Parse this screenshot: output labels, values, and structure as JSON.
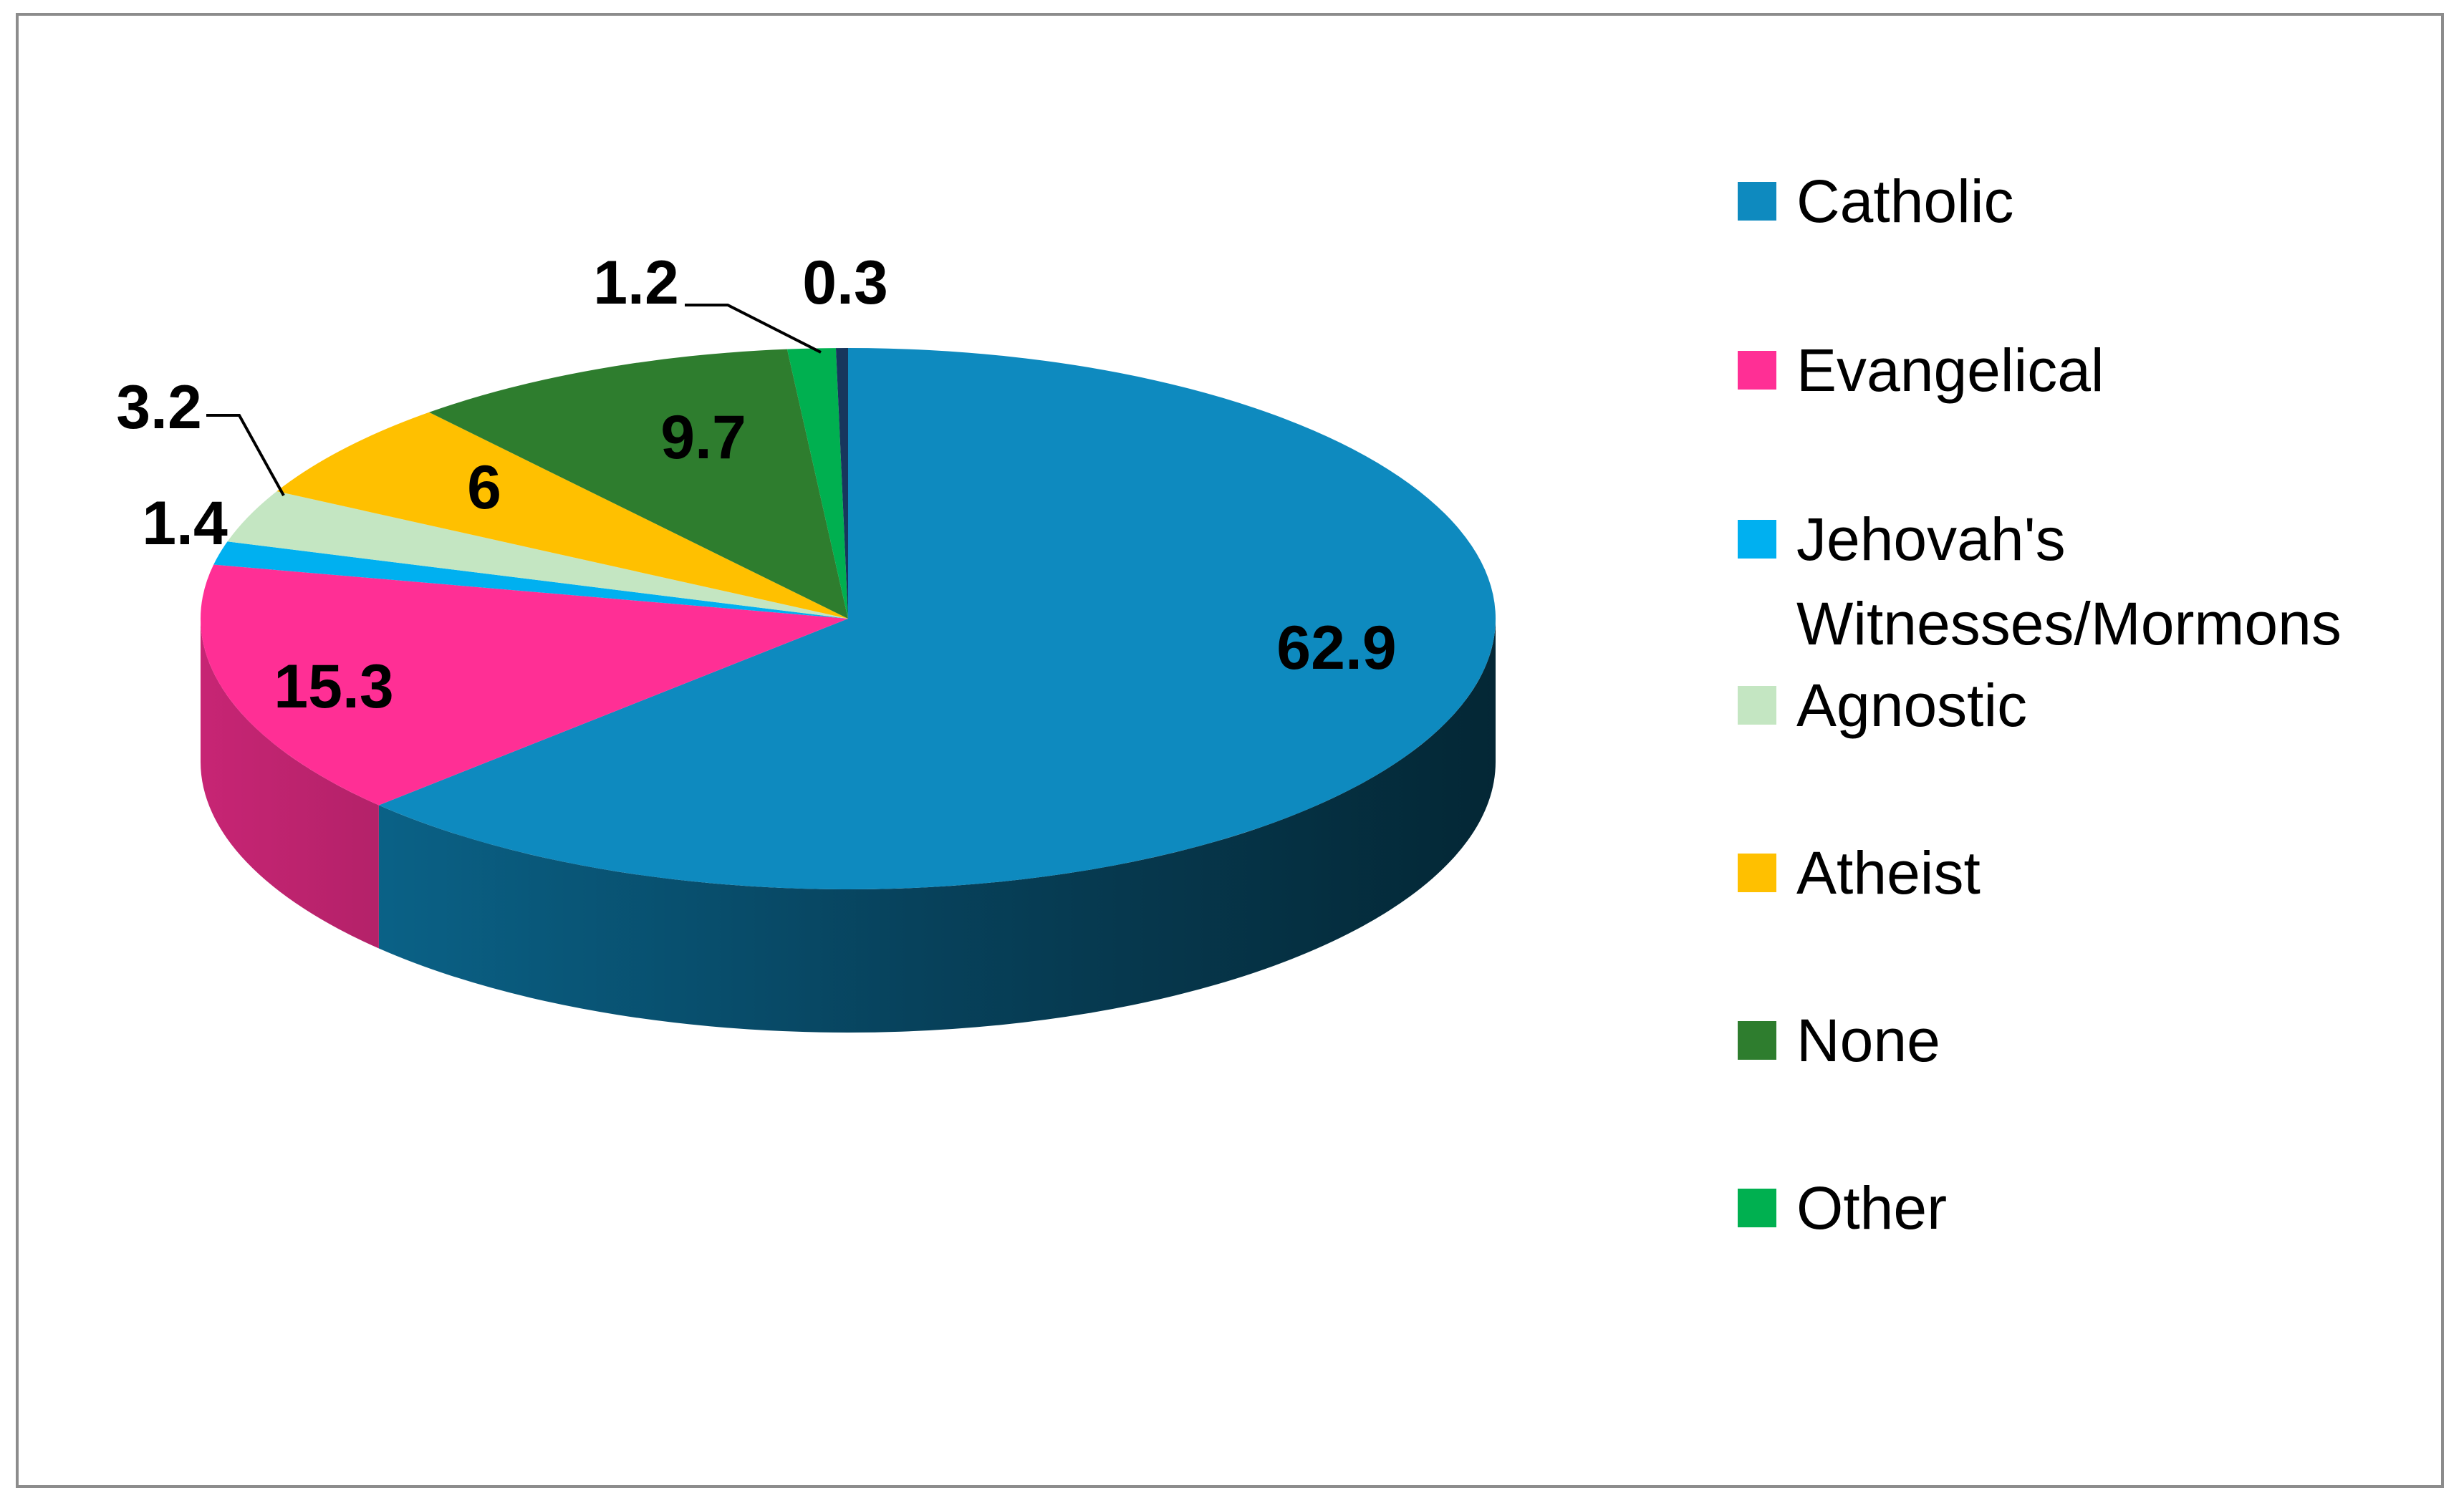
{
  "chart_data": {
    "type": "pie",
    "categories": [
      "Catholic",
      "Evangelical",
      "Jehovah's Witnesses/Mormons",
      "Agnostic",
      "Atheist",
      "None",
      "Other"
    ],
    "values": [
      62.9,
      15.3,
      1.4,
      3.2,
      6,
      9.7,
      1.2
    ],
    "data_labels": [
      "62.9",
      "15.3",
      "1.4",
      "3.2",
      "6",
      "9.7",
      "1.2"
    ],
    "unlabeled_slice": {
      "value": 0.3,
      "data_label": "0.3",
      "color": "#17365d"
    },
    "colors": [
      "#0e8abf",
      "#ff2f95",
      "#00b0f0",
      "#c4e6c2",
      "#ffc000",
      "#2e7d2e",
      "#00b050"
    ],
    "legend_position": "right",
    "three_d": true,
    "title": ""
  }
}
